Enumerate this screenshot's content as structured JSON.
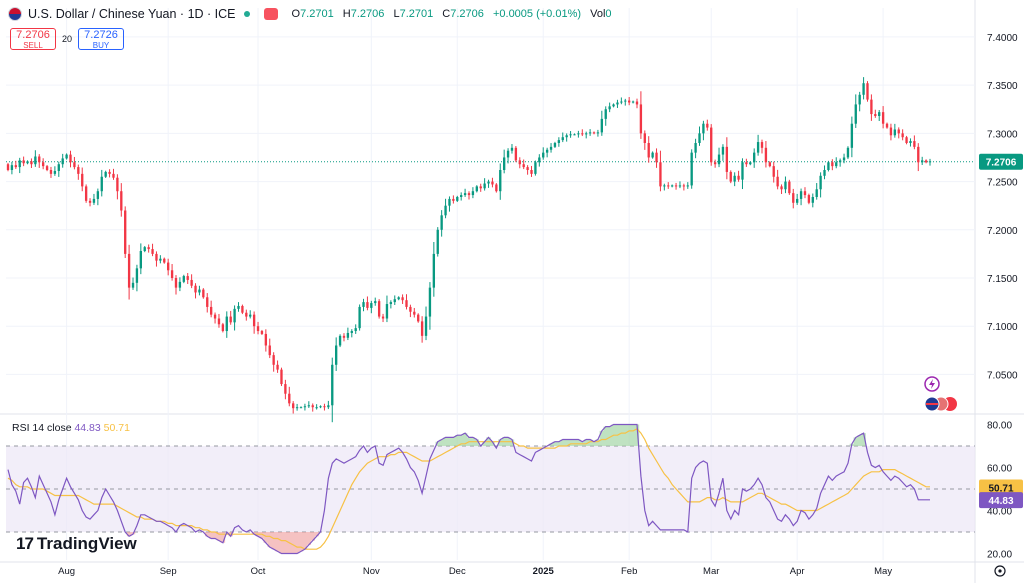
{
  "header": {
    "title": "U.S. Dollar / Chinese Yuan · 1D · ICE",
    "open_label": "O",
    "open": "7.2701",
    "high_label": "H",
    "high": "7.2706",
    "low_label": "L",
    "low": "7.2701",
    "close_label": "C",
    "close": "7.2706",
    "change": "+0.0005 (+0.01%)",
    "volume_label": "Vol",
    "volume": "0"
  },
  "trade": {
    "sell_price": "7.2706",
    "sell_label": "SELL",
    "spread": "20",
    "buy_price": "7.2726",
    "buy_label": "BUY"
  },
  "rsi": {
    "label": "RSI 14 close",
    "value": "44.83",
    "ma_value": "50.71"
  },
  "branding": {
    "logo_mark": "17",
    "logo_text": "TradingView"
  },
  "colors": {
    "up": "#089981",
    "down": "#f23645",
    "rsi": "#7e57c2",
    "rsi_ma": "#f7c145",
    "band": "#ede7f6"
  },
  "chart_data": [
    {
      "type": "candlestick",
      "title": "U.S. Dollar / Chinese Yuan",
      "x_ticks": [
        "Aug",
        "Sep",
        "Oct",
        "Nov",
        "Dec",
        "2025",
        "Feb",
        "Mar",
        "Apr",
        "May"
      ],
      "y_ticks": [
        "7.4000",
        "7.3500",
        "7.3000",
        "7.2500",
        "7.2000",
        "7.1500",
        "7.1000",
        "7.0500"
      ],
      "ylim": [
        7.01,
        7.43
      ],
      "last_price": "7.2706",
      "close_series": [
        7.262,
        7.267,
        7.265,
        7.272,
        7.269,
        7.271,
        7.268,
        7.276,
        7.27,
        7.266,
        7.262,
        7.258,
        7.261,
        7.268,
        7.274,
        7.278,
        7.27,
        7.265,
        7.258,
        7.245,
        7.23,
        7.228,
        7.232,
        7.24,
        7.255,
        7.26,
        7.258,
        7.254,
        7.24,
        7.22,
        7.175,
        7.14,
        7.145,
        7.16,
        7.178,
        7.182,
        7.18,
        7.175,
        7.168,
        7.17,
        7.166,
        7.158,
        7.15,
        7.14,
        7.146,
        7.152,
        7.148,
        7.142,
        7.135,
        7.138,
        7.13,
        7.12,
        7.112,
        7.108,
        7.102,
        7.095,
        7.11,
        7.104,
        7.118,
        7.121,
        7.114,
        7.11,
        7.112,
        7.1,
        7.095,
        7.092,
        7.08,
        7.07,
        7.06,
        7.055,
        7.04,
        7.03,
        7.02,
        7.015,
        7.016,
        7.016,
        7.017,
        7.018,
        7.016,
        7.016,
        7.017,
        7.016,
        7.018,
        7.06,
        7.08,
        7.09,
        7.088,
        7.093,
        7.095,
        7.098,
        7.12,
        7.125,
        7.119,
        7.124,
        7.126,
        7.11,
        7.108,
        7.123,
        7.125,
        7.128,
        7.13,
        7.127,
        7.12,
        7.115,
        7.112,
        7.105,
        7.09,
        7.11,
        7.14,
        7.175,
        7.2,
        7.215,
        7.225,
        7.232,
        7.23,
        7.234,
        7.236,
        7.238,
        7.236,
        7.24,
        7.245,
        7.243,
        7.248,
        7.25,
        7.247,
        7.24,
        7.262,
        7.275,
        7.282,
        7.285,
        7.272,
        7.268,
        7.265,
        7.262,
        7.258,
        7.27,
        7.275,
        7.28,
        7.283,
        7.286,
        7.29,
        7.293,
        7.296,
        7.298,
        7.299,
        7.299,
        7.3,
        7.299,
        7.3,
        7.301,
        7.3,
        7.301,
        7.315,
        7.325,
        7.328,
        7.33,
        7.332,
        7.333,
        7.334,
        7.332,
        7.333,
        7.33,
        7.3,
        7.29,
        7.275,
        7.28,
        7.27,
        7.245,
        7.246,
        7.245,
        7.246,
        7.245,
        7.246,
        7.245,
        7.246,
        7.28,
        7.29,
        7.3,
        7.31,
        7.306,
        7.27,
        7.268,
        7.278,
        7.286,
        7.26,
        7.25,
        7.256,
        7.252,
        7.27,
        7.268,
        7.27,
        7.28,
        7.291,
        7.285,
        7.27,
        7.266,
        7.255,
        7.245,
        7.242,
        7.25,
        7.238,
        7.228,
        7.232,
        7.24,
        7.236,
        7.228,
        7.234,
        7.242,
        7.256,
        7.262,
        7.27,
        7.266,
        7.27,
        7.272,
        7.275,
        7.285,
        7.31,
        7.33,
        7.34,
        7.352,
        7.335,
        7.32,
        7.318,
        7.322,
        7.31,
        7.306,
        7.298,
        7.304,
        7.3,
        7.296,
        7.29,
        7.292,
        7.286,
        7.27,
        7.272,
        7.27,
        7.271
      ]
    },
    {
      "type": "line",
      "title": "RSI 14 close",
      "y_ticks": [
        "80.00",
        "60.00",
        "40.00",
        "20.00"
      ],
      "ylim": [
        17,
        83
      ],
      "bands": [
        30,
        50,
        70
      ],
      "series": [
        {
          "name": "RSI",
          "values": [
            59,
            52,
            49,
            43,
            53,
            55,
            51,
            46,
            56,
            52,
            48,
            44,
            38,
            45,
            50,
            55,
            51,
            48,
            45,
            40,
            37,
            36,
            38,
            40,
            46,
            50,
            47,
            44,
            40,
            35,
            30,
            28,
            29,
            33,
            38,
            38,
            37,
            36,
            35,
            35,
            34,
            33,
            32,
            30,
            33,
            34,
            33,
            32,
            30,
            31,
            30,
            28,
            27,
            27,
            26,
            25,
            30,
            28,
            32,
            33,
            31,
            30,
            31,
            29,
            28,
            27,
            25,
            23,
            22,
            21,
            20,
            20,
            20,
            20,
            20,
            21,
            22,
            24,
            26,
            28,
            30,
            40,
            55,
            62,
            64,
            63,
            62,
            63,
            64,
            65,
            68,
            70,
            67,
            69,
            70,
            62,
            61,
            66,
            67,
            68,
            69,
            67,
            64,
            60,
            58,
            54,
            48,
            56,
            64,
            68,
            72,
            73,
            74,
            74,
            74,
            75,
            75,
            76,
            74,
            74,
            73,
            70,
            72,
            74,
            72,
            69,
            73,
            74,
            74,
            73,
            67,
            66,
            65,
            64,
            63,
            67,
            68,
            69,
            70,
            71,
            72,
            72,
            73,
            73,
            73,
            73,
            73,
            72,
            73,
            73,
            72,
            73,
            77,
            79,
            79,
            80,
            80,
            80,
            80,
            80,
            80,
            80,
            56,
            40,
            33,
            35,
            33,
            31,
            31,
            31,
            31,
            31,
            31,
            31,
            30,
            55,
            60,
            62,
            63,
            62,
            45,
            42,
            48,
            55,
            40,
            36,
            40,
            38,
            50,
            49,
            50,
            52,
            55,
            52,
            46,
            44,
            40,
            36,
            35,
            38,
            36,
            33,
            35,
            40,
            39,
            36,
            38,
            41,
            48,
            52,
            56,
            54,
            56,
            57,
            58,
            62,
            71,
            74,
            75,
            76,
            67,
            61,
            60,
            61,
            58,
            56,
            54,
            56,
            55,
            53,
            51,
            52,
            50,
            45,
            45,
            45,
            45
          ]
        },
        {
          "name": "RSI MA",
          "values": [
            55,
            54,
            52,
            51,
            51,
            51,
            50,
            50,
            50,
            50,
            49,
            48,
            47,
            47,
            47,
            47,
            47,
            47,
            47,
            46,
            45,
            44,
            43,
            43,
            43,
            43,
            43,
            43,
            42,
            41,
            40,
            39,
            38,
            37,
            37,
            36,
            36,
            36,
            35,
            35,
            35,
            34,
            34,
            33,
            33,
            33,
            33,
            33,
            32,
            32,
            31,
            31,
            30,
            30,
            29,
            29,
            29,
            29,
            29,
            29,
            29,
            29,
            29,
            29,
            29,
            29,
            28,
            28,
            27,
            27,
            26,
            26,
            25,
            24,
            23,
            23,
            22,
            22,
            22,
            22,
            23,
            25,
            28,
            32,
            36,
            40,
            44,
            48,
            52,
            55,
            58,
            60,
            62,
            63,
            64,
            65,
            65,
            65,
            66,
            66,
            67,
            67,
            67,
            66,
            65,
            64,
            63,
            63,
            63,
            64,
            65,
            66,
            67,
            68,
            69,
            70,
            71,
            71,
            72,
            72,
            72,
            72,
            72,
            72,
            72,
            72,
            72,
            72,
            72,
            72,
            71,
            70,
            70,
            69,
            69,
            69,
            69,
            69,
            69,
            69,
            69,
            70,
            70,
            70,
            71,
            71,
            71,
            71,
            71,
            72,
            72,
            72,
            73,
            73,
            74,
            75,
            75,
            76,
            76,
            77,
            77,
            78,
            76,
            73,
            69,
            66,
            63,
            60,
            57,
            55,
            52,
            50,
            48,
            46,
            44,
            44,
            44,
            44,
            45,
            46,
            46,
            45,
            45,
            46,
            45,
            44,
            44,
            44,
            44,
            45,
            46,
            47,
            48,
            48,
            47,
            46,
            45,
            44,
            43,
            43,
            42,
            41,
            40,
            40,
            40,
            40,
            40,
            40,
            41,
            42,
            43,
            44,
            45,
            46,
            47,
            48,
            50,
            52,
            54,
            56,
            57,
            58,
            58,
            58,
            59,
            59,
            59,
            59,
            58,
            57,
            56,
            55,
            54,
            53,
            52,
            51,
            51
          ]
        }
      ]
    }
  ]
}
